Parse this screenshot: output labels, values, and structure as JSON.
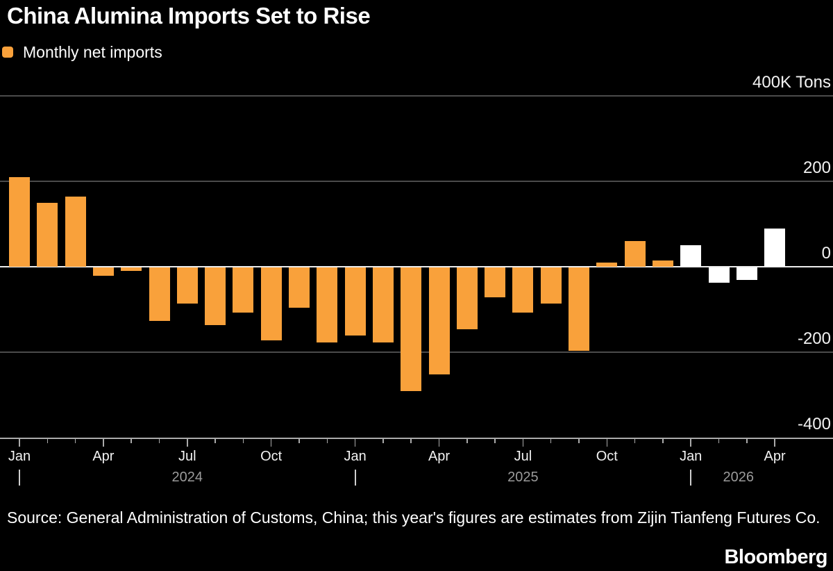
{
  "header": {
    "title": "China Alumina Imports Set to Rise"
  },
  "legend": {
    "items": [
      {
        "label": "Monthly net imports",
        "color": "#F9A13B"
      }
    ]
  },
  "chart_data": {
    "type": "bar",
    "title": "China Alumina Imports Set to Rise",
    "series_name": "Monthly net imports",
    "unit": "K Tons",
    "ylim": [
      -400,
      400
    ],
    "yticks": [
      {
        "value": 400,
        "label": "400K Tons"
      },
      {
        "value": 200,
        "label": "200"
      },
      {
        "value": 0,
        "label": "0"
      },
      {
        "value": -200,
        "label": "-200"
      },
      {
        "value": -400,
        "label": "-400"
      }
    ],
    "categories": [
      "Jan 2024",
      "Feb 2024",
      "Mar 2024",
      "Apr 2024",
      "May 2024",
      "Jun 2024",
      "Jul 2024",
      "Aug 2024",
      "Sep 2024",
      "Oct 2024",
      "Nov 2024",
      "Dec 2024",
      "Jan 2025",
      "Feb 2025",
      "Mar 2025",
      "Apr 2025",
      "May 2025",
      "Jun 2025",
      "Jul 2025",
      "Aug 2025",
      "Sep 2025",
      "Oct 2025",
      "Nov 2025",
      "Dec 2025",
      "Jan 2026",
      "Feb 2026",
      "Mar 2026",
      "Apr 2026"
    ],
    "values": [
      210,
      150,
      165,
      -20,
      -8,
      -125,
      -85,
      -135,
      -105,
      -170,
      -95,
      -175,
      -160,
      -175,
      -290,
      -250,
      -145,
      -70,
      -105,
      -85,
      -195,
      10,
      60,
      15,
      50,
      -35,
      -30,
      90
    ],
    "estimate_start_index": 24,
    "bar_color": "#F9A13B",
    "estimate_bar_color": "#FFFFFF",
    "x_axis": {
      "month_label_every": 3,
      "month_labels": [
        "Jan",
        "Apr",
        "Jul",
        "Oct",
        "Jan",
        "Apr",
        "Jul",
        "Oct",
        "Jan",
        "Apr"
      ],
      "year_separator_indices": [
        0,
        12,
        24
      ],
      "year_labels": [
        {
          "text": "2024",
          "at_index": 6
        },
        {
          "text": "2025",
          "at_index": 18
        },
        {
          "text": "2026",
          "at_index": 25.7
        }
      ]
    },
    "grid": {
      "gridline_values": [
        400,
        200,
        -200
      ],
      "zero_line": true,
      "legend_position": "top-left"
    },
    "colors": {
      "background": "#000000",
      "gridline": "#4B4B4B",
      "zero_line": "#EDEDED",
      "axis_line": "#ABABAB",
      "tick": "#ABABAB",
      "month_label": "#F2F2F2",
      "year_label": "#9B9B9B",
      "year_separator": "#CFCFCF",
      "y_label": "#F2F2F2"
    }
  },
  "footer": {
    "source_lines": [
      "Source: General Administration of Customs, China; this year's figures are estimates from Zijin Tianfeng",
      "Futures Co."
    ],
    "brand": "Bloomberg"
  }
}
